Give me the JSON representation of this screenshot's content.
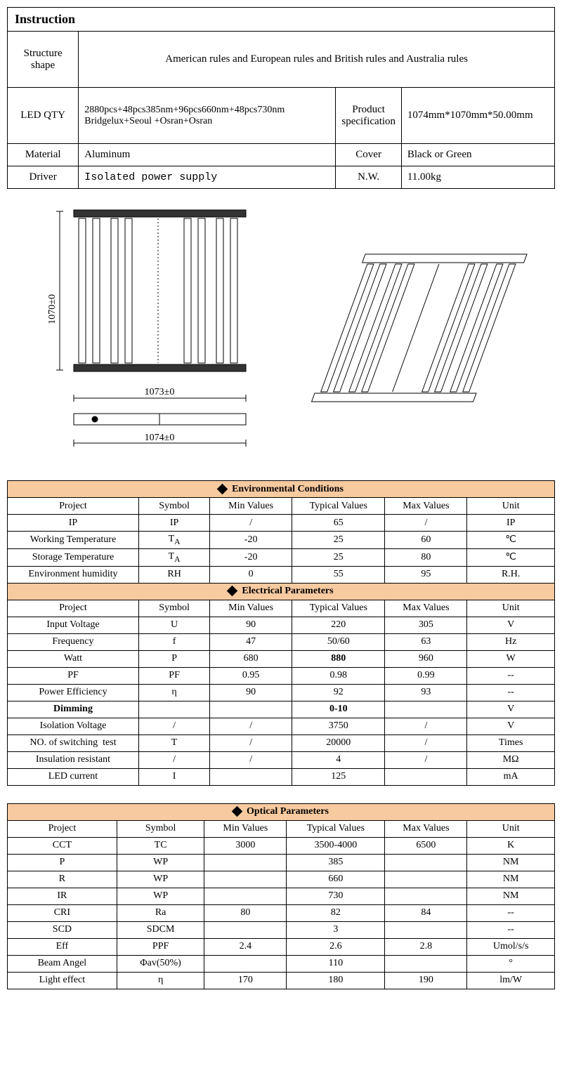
{
  "instruction": {
    "title": "Instruction",
    "rows": [
      {
        "label": "Structure shape",
        "value": "American rules and European rules and British rules and Australia rules"
      }
    ],
    "ledqty": {
      "label": "LED QTY",
      "value_line1": "2880pcs+48pcs385nm+96pcs660nm+48pcs730nm",
      "value_line2": "Bridgelux+Seoul +Osran+Osran",
      "spec_label": "Product specification",
      "spec_value": "1074mm*1070mm*50.00mm"
    },
    "material": {
      "label": "Material",
      "value": "Aluminum",
      "cover_label": "Cover",
      "cover_value": "Black or Green"
    },
    "driver": {
      "label": "Driver",
      "value": "Isolated power supply",
      "nw_label": "N.W.",
      "nw_value": "11.00kg"
    }
  },
  "drawing": {
    "dim_height": "1070±0",
    "dim_width_main": "1073±0",
    "dim_width_bottom": "1074±0"
  },
  "env": {
    "title": "Environmental Conditions",
    "headers": [
      "Project",
      "Symbol",
      "Min Values",
      "Typical Values",
      "Max Values",
      "Unit"
    ],
    "rows": [
      [
        "IP",
        "IP",
        "/",
        "65",
        "/",
        "IP"
      ],
      [
        "Working Temperature",
        "T<sub>A</sub>",
        "-20",
        "25",
        "60",
        "℃"
      ],
      [
        "Storage Temperature",
        "T<sub>A</sub>",
        "-20",
        "25",
        "80",
        "℃"
      ],
      [
        "Environment humidity",
        "RH",
        "0",
        "55",
        "95",
        "R.H."
      ]
    ]
  },
  "elec": {
    "title": "Electrical Parameters",
    "headers": [
      "Project",
      "Symbol",
      "Min Values",
      "Typical Values",
      "Max Values",
      "Unit"
    ],
    "rows": [
      [
        "Input Voltage",
        "U",
        "90",
        "220",
        "305",
        "V"
      ],
      [
        "Frequency",
        "f",
        "47",
        "50/60",
        "63",
        "Hz"
      ],
      [
        "Watt",
        "P",
        "680",
        "<b>880</b>",
        "960",
        "W"
      ],
      [
        "PF",
        "PF",
        "0.95",
        "0.98",
        "0.99",
        "--"
      ],
      [
        "Power Efficiency",
        "η",
        "90",
        "92",
        "93",
        "--"
      ],
      [
        "<b>Dimming</b>",
        "",
        "",
        "<b>0-10</b>",
        "",
        "V"
      ],
      [
        "Isolation Voltage",
        "/",
        "/",
        "3750",
        "/",
        "V"
      ],
      [
        "NO. of switching&nbsp;&nbsp;test",
        "T",
        "/",
        "20000",
        "/",
        "Times"
      ],
      [
        "Insulation resistant",
        "/",
        "/",
        "4",
        "/",
        "MΩ"
      ],
      [
        "LED current",
        "I",
        "",
        "125",
        "",
        "mA"
      ]
    ]
  },
  "opt": {
    "title": "Optical Parameters",
    "headers": [
      "Project",
      "Symbol",
      "Min Values",
      "Typical Values",
      "Max Values",
      "Unit"
    ],
    "rows": [
      [
        "CCT",
        "TC",
        "3000",
        "3500-4000",
        "6500",
        "K"
      ],
      [
        "P",
        "WP",
        "",
        "385",
        "",
        "NM"
      ],
      [
        "R",
        "WP",
        "",
        "660",
        "",
        "NM"
      ],
      [
        "IR",
        "WP",
        "",
        "730",
        "",
        "NM"
      ],
      [
        "CRI",
        "Ra",
        "80",
        "82",
        "84",
        "--"
      ],
      [
        "SCD",
        "SDCM",
        "",
        "3",
        "",
        "--"
      ],
      [
        "Eff",
        "PPF",
        "2.4",
        "2.6",
        "2.8",
        "Umol/s/s"
      ],
      [
        "Beam Angel",
        "Φav(50%)",
        "",
        "110",
        "",
        "°"
      ],
      [
        "Light effect",
        "η",
        "170",
        "180",
        "190",
        "lm/W"
      ]
    ]
  },
  "colors": {
    "section_header_bg": "#f8caa0",
    "border": "#000000",
    "text": "#000000",
    "bg": "#ffffff"
  }
}
